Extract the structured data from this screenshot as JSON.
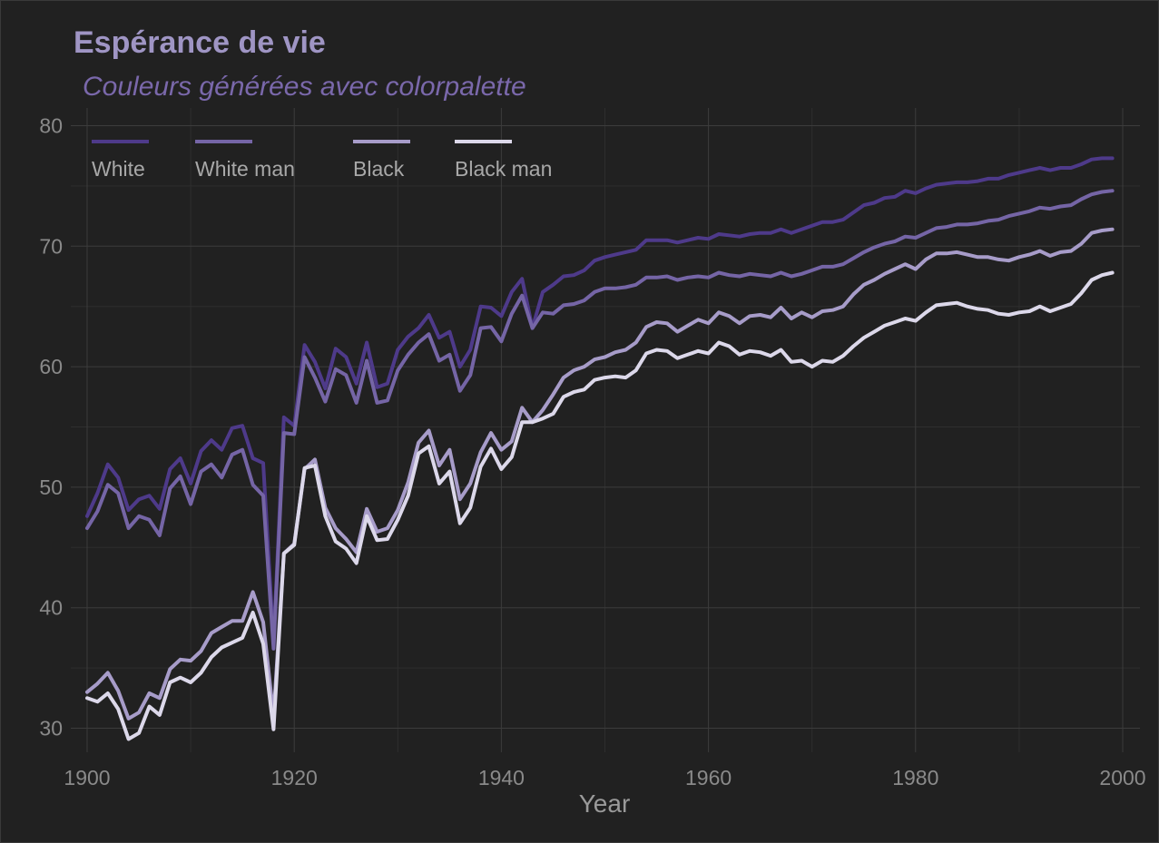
{
  "chart_data": {
    "type": "line",
    "title": "Espérance de vie",
    "subtitle": "Couleurs générées avec colorpalette",
    "xlabel": "Year",
    "ylabel": "",
    "xlim": [
      1900,
      2000
    ],
    "ylim": [
      28,
      81
    ],
    "x_ticks": [
      1900,
      1920,
      1940,
      1960,
      1980,
      2000
    ],
    "y_ticks": [
      30,
      40,
      50,
      60,
      70,
      80
    ],
    "grid": true,
    "legend_position": "top-left",
    "x": [
      1900,
      1901,
      1902,
      1903,
      1904,
      1905,
      1906,
      1907,
      1908,
      1909,
      1910,
      1911,
      1912,
      1913,
      1914,
      1915,
      1916,
      1917,
      1918,
      1919,
      1920,
      1921,
      1922,
      1923,
      1924,
      1925,
      1926,
      1927,
      1928,
      1929,
      1930,
      1931,
      1932,
      1933,
      1934,
      1935,
      1936,
      1937,
      1938,
      1939,
      1940,
      1941,
      1942,
      1943,
      1944,
      1945,
      1946,
      1947,
      1948,
      1949,
      1950,
      1951,
      1952,
      1953,
      1954,
      1955,
      1956,
      1957,
      1958,
      1959,
      1960,
      1961,
      1962,
      1963,
      1964,
      1965,
      1966,
      1967,
      1968,
      1969,
      1970,
      1971,
      1972,
      1973,
      1974,
      1975,
      1976,
      1977,
      1978,
      1979,
      1980,
      1981,
      1982,
      1983,
      1984,
      1985,
      1986,
      1987,
      1988,
      1989,
      1990,
      1991,
      1992,
      1993,
      1994,
      1995,
      1996,
      1997,
      1998,
      1999
    ],
    "series": [
      {
        "name": "White",
        "color": "#4e3a8a",
        "values": [
          47.6,
          49.5,
          51.9,
          50.8,
          48.1,
          49.0,
          49.3,
          48.2,
          51.5,
          52.4,
          50.3,
          53.0,
          53.9,
          53.1,
          54.9,
          55.1,
          52.4,
          52.0,
          37.1,
          55.8,
          55.1,
          61.8,
          60.4,
          58.2,
          61.5,
          60.8,
          58.6,
          62.0,
          58.3,
          58.6,
          61.4,
          62.5,
          63.2,
          64.3,
          62.4,
          62.9,
          60.0,
          61.4,
          65.0,
          64.9,
          64.2,
          66.2,
          67.3,
          63.2,
          66.2,
          66.8,
          67.5,
          67.6,
          68.0,
          68.8,
          69.1,
          69.3,
          69.5,
          69.7,
          70.5,
          70.5,
          70.5,
          70.3,
          70.5,
          70.7,
          70.6,
          71.0,
          70.9,
          70.8,
          71.0,
          71.1,
          71.1,
          71.4,
          71.1,
          71.4,
          71.7,
          72.0,
          72.0,
          72.2,
          72.8,
          73.4,
          73.6,
          74.0,
          74.1,
          74.6,
          74.4,
          74.8,
          75.1,
          75.2,
          75.3,
          75.3,
          75.4,
          75.6,
          75.6,
          75.9,
          76.1,
          76.3,
          76.5,
          76.3,
          76.5,
          76.5,
          76.8,
          77.2,
          77.3,
          77.3
        ]
      },
      {
        "name": "White man",
        "color": "#7565a6",
        "values": [
          46.6,
          48.0,
          50.2,
          49.5,
          46.6,
          47.6,
          47.3,
          46.0,
          49.9,
          50.9,
          48.6,
          51.3,
          51.9,
          50.8,
          52.7,
          53.1,
          50.2,
          49.3,
          36.6,
          54.5,
          54.4,
          60.8,
          59.1,
          57.1,
          59.8,
          59.3,
          57.0,
          60.5,
          57.0,
          57.2,
          59.7,
          61.0,
          62.0,
          62.7,
          60.5,
          61.0,
          58.0,
          59.3,
          63.2,
          63.3,
          62.1,
          64.4,
          65.9,
          63.2,
          64.5,
          64.4,
          65.1,
          65.2,
          65.5,
          66.2,
          66.5,
          66.5,
          66.6,
          66.8,
          67.4,
          67.4,
          67.5,
          67.2,
          67.4,
          67.5,
          67.4,
          67.8,
          67.6,
          67.5,
          67.7,
          67.6,
          67.5,
          67.8,
          67.5,
          67.7,
          68.0,
          68.3,
          68.3,
          68.5,
          69.0,
          69.5,
          69.9,
          70.2,
          70.4,
          70.8,
          70.7,
          71.1,
          71.5,
          71.6,
          71.8,
          71.8,
          71.9,
          72.1,
          72.2,
          72.5,
          72.7,
          72.9,
          73.2,
          73.1,
          73.3,
          73.4,
          73.9,
          74.3,
          74.5,
          74.6
        ]
      },
      {
        "name": "Black",
        "color": "#a79cc9",
        "values": [
          33.0,
          33.7,
          34.6,
          33.1,
          30.8,
          31.3,
          32.9,
          32.5,
          34.9,
          35.7,
          35.6,
          36.4,
          37.9,
          38.4,
          38.9,
          38.9,
          41.3,
          38.8,
          31.0,
          44.5,
          45.3,
          51.5,
          52.3,
          48.3,
          46.6,
          45.7,
          44.6,
          48.2,
          46.3,
          46.6,
          48.1,
          50.4,
          53.7,
          54.7,
          51.8,
          53.1,
          49.0,
          50.3,
          52.9,
          54.5,
          53.1,
          53.8,
          56.6,
          55.4,
          56.4,
          57.7,
          59.1,
          59.7,
          60.0,
          60.6,
          60.8,
          61.2,
          61.4,
          62.0,
          63.3,
          63.7,
          63.6,
          62.9,
          63.4,
          63.9,
          63.6,
          64.5,
          64.2,
          63.6,
          64.2,
          64.3,
          64.1,
          64.9,
          64.0,
          64.5,
          64.1,
          64.6,
          64.7,
          65.0,
          66.0,
          66.8,
          67.2,
          67.7,
          68.1,
          68.5,
          68.1,
          68.9,
          69.4,
          69.4,
          69.5,
          69.3,
          69.1,
          69.1,
          68.9,
          68.8,
          69.1,
          69.3,
          69.6,
          69.2,
          69.5,
          69.6,
          70.2,
          71.1,
          71.3,
          71.4
        ]
      },
      {
        "name": "Black man",
        "color": "#dcd8ea",
        "values": [
          32.5,
          32.2,
          32.9,
          31.6,
          29.1,
          29.6,
          31.8,
          31.1,
          33.8,
          34.2,
          33.8,
          34.6,
          35.9,
          36.7,
          37.1,
          37.5,
          39.6,
          37.0,
          29.9,
          44.5,
          45.2,
          51.6,
          51.8,
          47.6,
          45.5,
          44.9,
          43.7,
          47.6,
          45.6,
          45.7,
          47.3,
          49.3,
          52.8,
          53.4,
          50.3,
          51.3,
          47.0,
          48.3,
          51.7,
          53.2,
          51.5,
          52.5,
          55.4,
          55.4,
          55.7,
          56.1,
          57.5,
          57.9,
          58.1,
          58.9,
          59.1,
          59.2,
          59.1,
          59.7,
          61.1,
          61.4,
          61.3,
          60.7,
          61.0,
          61.3,
          61.1,
          62.0,
          61.7,
          61.0,
          61.3,
          61.2,
          60.9,
          61.4,
          60.4,
          60.5,
          60.0,
          60.5,
          60.4,
          60.9,
          61.7,
          62.4,
          62.9,
          63.4,
          63.7,
          64.0,
          63.8,
          64.5,
          65.1,
          65.2,
          65.3,
          65.0,
          64.8,
          64.7,
          64.4,
          64.3,
          64.5,
          64.6,
          65.0,
          64.6,
          64.9,
          65.2,
          66.1,
          67.2,
          67.6,
          67.8
        ]
      }
    ]
  }
}
